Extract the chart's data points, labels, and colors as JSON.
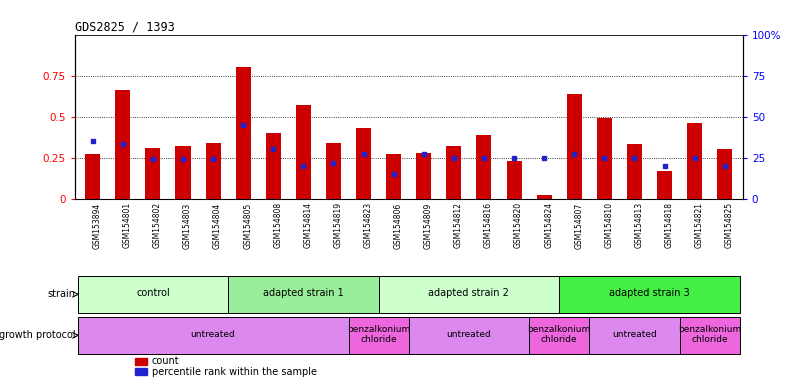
{
  "title": "GDS2825 / 1393",
  "samples": [
    "GSM153894",
    "GSM154801",
    "GSM154802",
    "GSM154803",
    "GSM154804",
    "GSM154805",
    "GSM154808",
    "GSM154814",
    "GSM154819",
    "GSM154823",
    "GSM154806",
    "GSM154809",
    "GSM154812",
    "GSM154816",
    "GSM154820",
    "GSM154824",
    "GSM154807",
    "GSM154810",
    "GSM154813",
    "GSM154818",
    "GSM154821",
    "GSM154825"
  ],
  "count_values": [
    0.27,
    0.66,
    0.31,
    0.32,
    0.34,
    0.8,
    0.4,
    0.57,
    0.34,
    0.43,
    0.27,
    0.28,
    0.32,
    0.39,
    0.23,
    0.02,
    0.64,
    0.49,
    0.33,
    0.17,
    0.46,
    0.3
  ],
  "percentile_values": [
    0.35,
    0.33,
    0.24,
    0.24,
    0.24,
    0.45,
    0.3,
    0.2,
    0.22,
    0.27,
    0.15,
    0.27,
    0.25,
    0.25,
    0.25,
    0.25,
    0.27,
    0.25,
    0.25,
    0.2,
    0.25,
    0.2
  ],
  "bar_color": "#cc0000",
  "percentile_color": "#2222cc",
  "ylim_left": [
    0,
    1.0
  ],
  "ylim_right": [
    0,
    100
  ],
  "yticks_left": [
    0,
    0.25,
    0.5,
    0.75
  ],
  "yticks_right": [
    0,
    25,
    50,
    75,
    100
  ],
  "ytick_labels_left": [
    "0",
    "0.25",
    "0.5",
    "0.75"
  ],
  "ytick_labels_right": [
    "0",
    "25",
    "50",
    "75",
    "100%"
  ],
  "grid_values": [
    0.25,
    0.5,
    0.75
  ],
  "strain_groups": [
    {
      "label": "control",
      "start": 0,
      "end": 5,
      "color": "#ccffcc"
    },
    {
      "label": "adapted strain 1",
      "start": 5,
      "end": 10,
      "color": "#99ee99"
    },
    {
      "label": "adapted strain 2",
      "start": 10,
      "end": 16,
      "color": "#ccffcc"
    },
    {
      "label": "adapted strain 3",
      "start": 16,
      "end": 22,
      "color": "#44ee44"
    }
  ],
  "protocol_groups": [
    {
      "label": "untreated",
      "start": 0,
      "end": 9,
      "color": "#dd88ee"
    },
    {
      "label": "benzalkonium\nchloride",
      "start": 9,
      "end": 11,
      "color": "#ee66dd"
    },
    {
      "label": "untreated",
      "start": 11,
      "end": 15,
      "color": "#dd88ee"
    },
    {
      "label": "benzalkonium\nchloride",
      "start": 15,
      "end": 17,
      "color": "#ee66dd"
    },
    {
      "label": "untreated",
      "start": 17,
      "end": 20,
      "color": "#dd88ee"
    },
    {
      "label": "benzalkonium\nchloride",
      "start": 20,
      "end": 22,
      "color": "#ee66dd"
    }
  ],
  "legend_count_label": "count",
  "legend_percentile_label": "percentile rank within the sample",
  "strain_label": "strain",
  "protocol_label": "growth protocol",
  "bar_width": 0.5,
  "tick_bg_color": "#dddddd"
}
